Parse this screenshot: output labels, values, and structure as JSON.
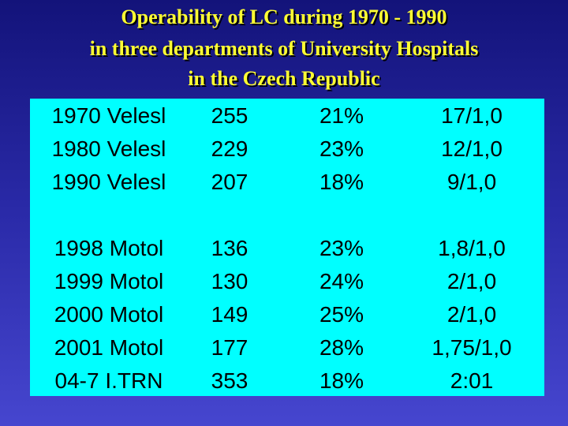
{
  "header": {
    "title": [
      "Operability of LC during 1970 - 1990",
      "in  three departments of University Hospitals",
      "in the Czech Republic"
    ]
  },
  "table": {
    "groups": [
      [
        [
          "1970 Velesl",
          "255",
          "21%",
          "17/1,0"
        ],
        [
          "1980 Velesl",
          "229",
          "23%",
          "12/1,0"
        ],
        [
          "1990 Velesl",
          "207",
          "18%",
          "9/1,0"
        ]
      ],
      [
        [
          "1998 Motol",
          "136",
          "23%",
          "1,8/1,0"
        ],
        [
          "1999 Motol",
          "130",
          "24%",
          "2/1,0"
        ],
        [
          "2000 Motol",
          "149",
          "25%",
          "2/1,0"
        ],
        [
          "2001 Motol",
          "177",
          "28%",
          "1,75/1,0"
        ],
        [
          "04-7 I.TRN",
          "353",
          "18%",
          "2:01"
        ]
      ]
    ]
  }
}
